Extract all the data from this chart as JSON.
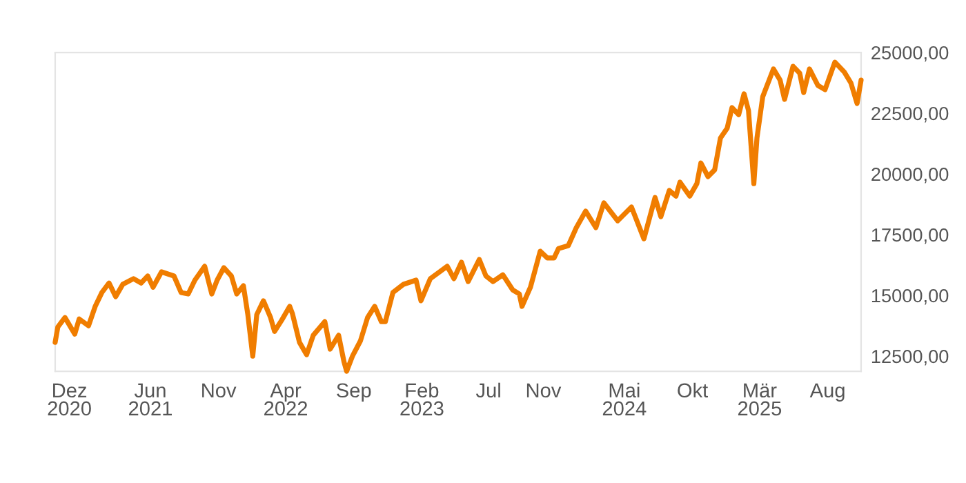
{
  "chart_data": {
    "type": "line",
    "x": [
      "2020-10-30",
      "2020-11-05",
      "2020-11-21",
      "2020-12-13",
      "2020-12-23",
      "2021-01-13",
      "2021-01-28",
      "2021-02-12",
      "2021-02-28",
      "2021-03-15",
      "2021-03-31",
      "2021-04-24",
      "2021-05-11",
      "2021-05-26",
      "2021-06-07",
      "2021-06-26",
      "2021-07-24",
      "2021-08-09",
      "2021-08-25",
      "2021-09-09",
      "2021-10-01",
      "2021-10-17",
      "2021-10-29",
      "2021-11-13",
      "2021-11-30",
      "2021-12-12",
      "2021-12-27",
      "2022-01-06",
      "2022-01-17",
      "2022-01-26",
      "2022-02-10",
      "2022-02-26",
      "2022-03-07",
      "2022-03-23",
      "2022-04-10",
      "2022-04-16",
      "2022-05-02",
      "2022-05-18",
      "2022-06-02",
      "2022-06-28",
      "2022-07-10",
      "2022-07-29",
      "2022-08-10",
      "2022-08-16",
      "2022-08-29",
      "2022-09-16",
      "2022-10-02",
      "2022-10-18",
      "2022-11-02",
      "2022-11-11",
      "2022-11-28",
      "2022-12-22",
      "2023-01-19",
      "2023-01-30",
      "2023-02-20",
      "2023-03-30",
      "2023-04-14",
      "2023-05-01",
      "2023-05-16",
      "2023-06-10",
      "2023-06-25",
      "2023-07-11",
      "2023-08-02",
      "2023-08-24",
      "2023-09-08",
      "2023-09-14",
      "2023-10-03",
      "2023-10-25",
      "2023-11-10",
      "2023-11-25",
      "2023-12-05",
      "2023-12-27",
      "2024-01-14",
      "2024-02-04",
      "2024-02-27",
      "2024-03-16",
      "2024-04-16",
      "2024-05-17",
      "2024-06-14",
      "2024-07-09",
      "2024-07-22",
      "2024-08-10",
      "2024-08-25",
      "2024-09-03",
      "2024-09-25",
      "2024-10-11",
      "2024-10-20",
      "2024-11-05",
      "2024-11-20",
      "2024-12-03",
      "2024-12-18",
      "2024-12-29",
      "2025-01-13",
      "2025-01-25",
      "2025-02-04",
      "2025-02-16",
      "2025-02-23",
      "2025-03-08",
      "2025-04-01",
      "2025-04-16",
      "2025-04-26",
      "2025-05-15",
      "2025-05-30",
      "2025-06-08",
      "2025-06-21",
      "2025-07-10",
      "2025-07-26",
      "2025-08-17",
      "2025-09-07",
      "2025-09-22",
      "2025-10-06",
      "2025-10-15"
    ],
    "series": [
      {
        "color": "#f07d00",
        "values": [
          13070,
          13700,
          14090,
          13410,
          14030,
          13750,
          14550,
          15120,
          15510,
          14950,
          15460,
          15690,
          15510,
          15800,
          15340,
          15970,
          15800,
          15120,
          15060,
          15630,
          16200,
          15060,
          15630,
          16140,
          15800,
          15060,
          15400,
          14210,
          12500,
          14210,
          14780,
          14090,
          13520,
          13980,
          14550,
          14260,
          13070,
          12560,
          13360,
          13920,
          12790,
          13360,
          12270,
          11880,
          12500,
          13130,
          14090,
          14550,
          13920,
          13920,
          15120,
          15460,
          15630,
          14780,
          15690,
          16200,
          15690,
          16370,
          15570,
          16480,
          15800,
          15570,
          15850,
          15230,
          15060,
          14550,
          15340,
          16820,
          16540,
          16540,
          16930,
          17050,
          17790,
          18470,
          17790,
          18810,
          18070,
          18640,
          17330,
          19030,
          18240,
          19320,
          19090,
          19660,
          19090,
          19600,
          20450,
          19890,
          20170,
          21480,
          21880,
          22730,
          22440,
          23300,
          22610,
          19600,
          21480,
          23180,
          24320,
          23860,
          23070,
          24430,
          24150,
          23350,
          24320,
          23640,
          23470,
          24600,
          24200,
          23750,
          22900,
          23860
        ]
      }
    ],
    "xticks": [
      {
        "value": "2020-12-01",
        "label": "Dez\n2020"
      },
      {
        "value": "2021-06-01",
        "label": "Jun\n2021"
      },
      {
        "value": "2021-11-01",
        "label": "Nov"
      },
      {
        "value": "2022-04-01",
        "label": "Apr\n2022"
      },
      {
        "value": "2022-09-01",
        "label": "Sep"
      },
      {
        "value": "2023-02-01",
        "label": "Feb\n2023"
      },
      {
        "value": "2023-07-01",
        "label": "Jul"
      },
      {
        "value": "2023-11-01",
        "label": "Nov"
      },
      {
        "value": "2024-05-01",
        "label": "Mai\n2024"
      },
      {
        "value": "2024-10-01",
        "label": "Okt"
      },
      {
        "value": "2025-03-01",
        "label": "Mär\n2025"
      },
      {
        "value": "2025-08-01",
        "label": "Aug"
      }
    ],
    "xlim": [
      "2020-10-30",
      "2025-10-15"
    ],
    "ylim": [
      11880,
      25000
    ],
    "yticks": [
      {
        "value": 12500,
        "label": "12500,00"
      },
      {
        "value": 15000,
        "label": "15000,00"
      },
      {
        "value": 17500,
        "label": "17500,00"
      },
      {
        "value": 20000,
        "label": "20000,00"
      },
      {
        "value": 22500,
        "label": "22500,00"
      },
      {
        "value": 25000,
        "label": "25000,00"
      }
    ],
    "grid": false,
    "legend": false
  }
}
